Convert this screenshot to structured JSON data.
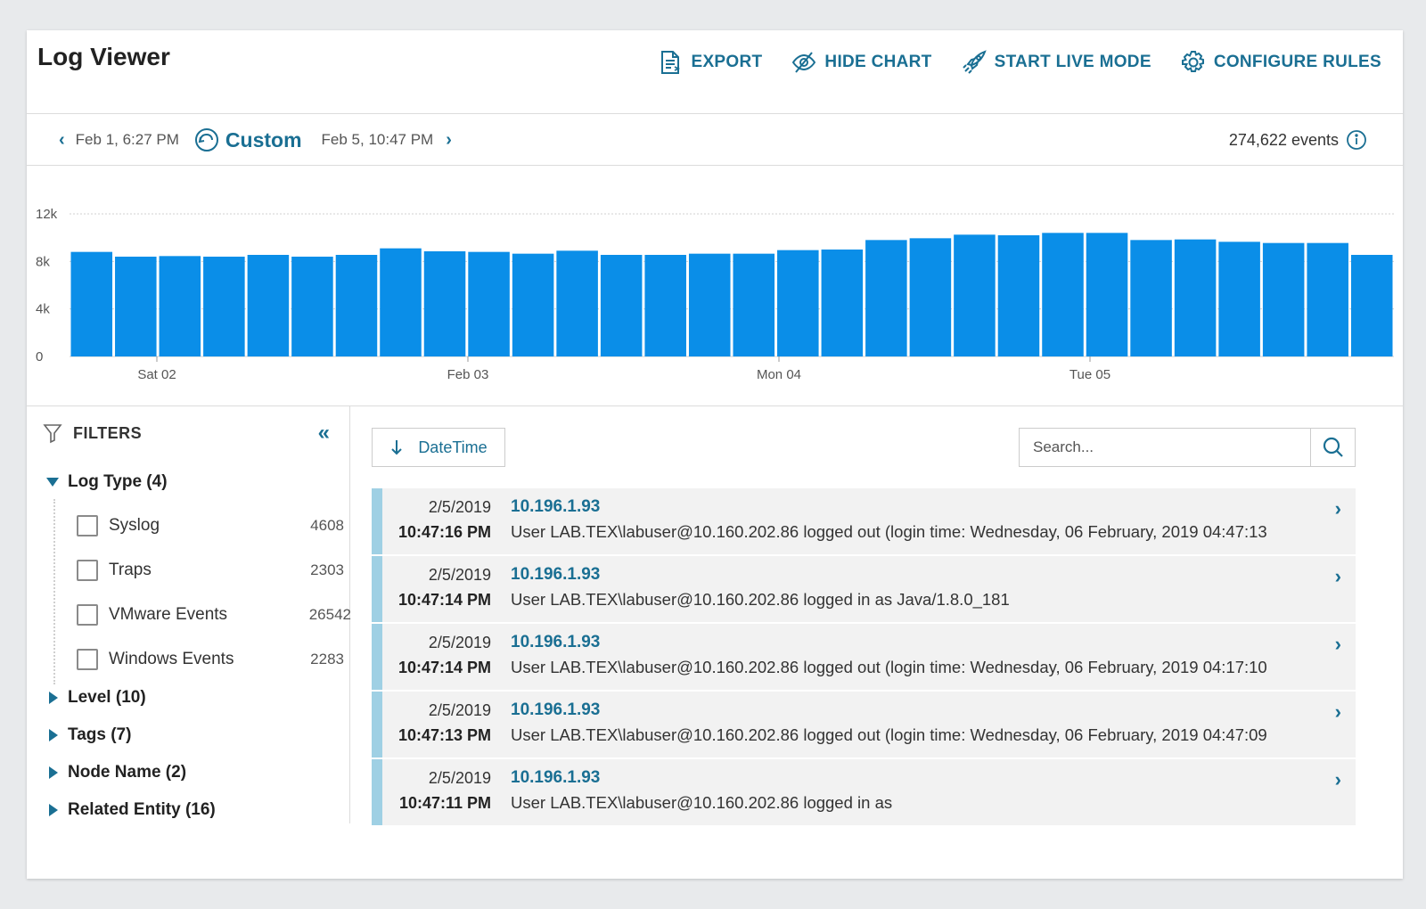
{
  "header": {
    "title": "Log Viewer",
    "actions": {
      "export": "EXPORT",
      "hide_chart": "HIDE CHART",
      "live_mode": "START LIVE MODE",
      "configure": "CONFIGURE RULES"
    }
  },
  "timebar": {
    "start": "Feb 1, 6:27 PM",
    "preset": "Custom",
    "end": "Feb 5, 10:47 PM",
    "events": "274,622 events"
  },
  "chart_data": {
    "type": "bar",
    "y_ticks": [
      "12k",
      "8k",
      "4k",
      "0"
    ],
    "ylim": [
      0,
      12000
    ],
    "x_tick_labels": [
      "Sat 02",
      "Feb 03",
      "Mon 04",
      "Tue 05"
    ],
    "values": [
      8800,
      8400,
      8450,
      8400,
      8550,
      8400,
      8550,
      9100,
      8850,
      8800,
      8650,
      8900,
      8550,
      8550,
      8650,
      8650,
      8950,
      9000,
      9800,
      9950,
      10250,
      10200,
      10400,
      10400,
      9800,
      9850,
      9650,
      9550,
      9550,
      8550
    ],
    "bar_color": "#0a8ee8",
    "grid": true
  },
  "filters": {
    "title": "FILTERS",
    "collapse_glyph": "«",
    "log_type": {
      "label": "Log Type (4)",
      "options": [
        {
          "label": "Syslog",
          "count": "4608"
        },
        {
          "label": "Traps",
          "count": "2303"
        },
        {
          "label": "VMware Events",
          "count": "26542"
        },
        {
          "label": "Windows Events",
          "count": "2283"
        }
      ]
    },
    "groups": [
      "Level (10)",
      "Tags (7)",
      "Node Name (2)",
      "Related Entity (16)"
    ]
  },
  "results": {
    "sort_label": "DateTime",
    "search_placeholder": "Search...",
    "rows": [
      {
        "date": "2/5/2019",
        "time": "10:47:16 PM",
        "ip": "10.196.1.93",
        "msg": "User LAB.TEX\\labuser@10.160.202.86 logged out (login time: Wednesday, 06 February, 2019 04:47:13"
      },
      {
        "date": "2/5/2019",
        "time": "10:47:14 PM",
        "ip": "10.196.1.93",
        "msg": "User LAB.TEX\\labuser@10.160.202.86 logged in as Java/1.8.0_181"
      },
      {
        "date": "2/5/2019",
        "time": "10:47:14 PM",
        "ip": "10.196.1.93",
        "msg": "User LAB.TEX\\labuser@10.160.202.86 logged out (login time: Wednesday, 06 February, 2019 04:17:10"
      },
      {
        "date": "2/5/2019",
        "time": "10:47:13 PM",
        "ip": "10.196.1.93",
        "msg": "User LAB.TEX\\labuser@10.160.202.86 logged out (login time: Wednesday, 06 February, 2019 04:47:09"
      },
      {
        "date": "2/5/2019",
        "time": "10:47:11 PM",
        "ip": "10.196.1.93",
        "msg": "User LAB.TEX\\labuser@10.160.202.86 logged in as"
      }
    ]
  },
  "colors": {
    "accent": "#1a6f93",
    "row_marker": "#9fd0e4",
    "bar": "#0a8ee8"
  }
}
